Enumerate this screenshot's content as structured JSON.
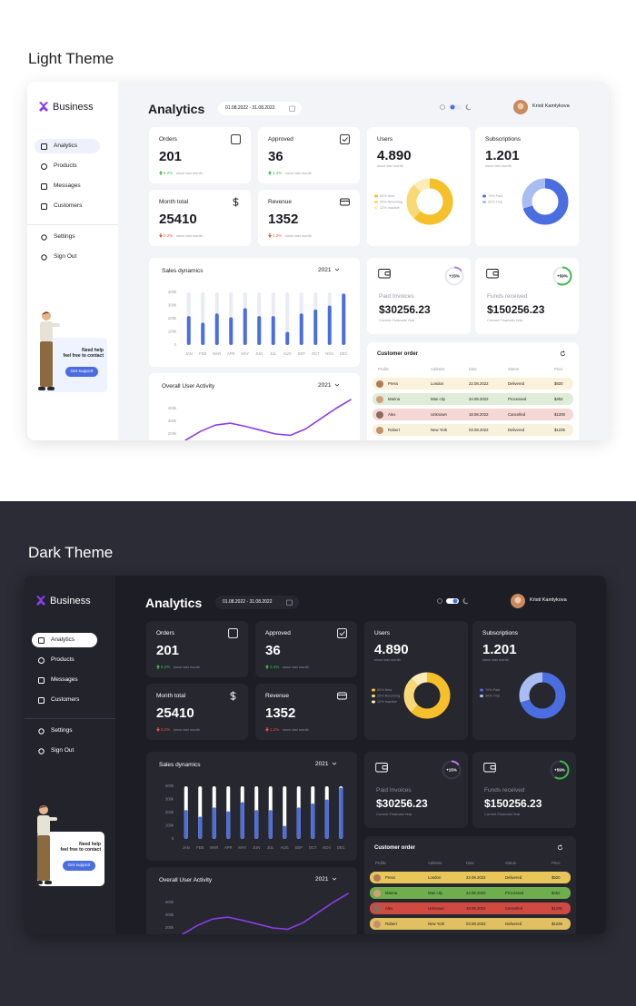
{
  "sections": [
    {
      "title": "Light Theme",
      "theme": "light"
    },
    {
      "title": "Dark Theme",
      "theme": "dark"
    }
  ],
  "sidebar": {
    "brand": "Business",
    "nav": [
      "Analytics",
      "Products",
      "Messages",
      "Customers"
    ],
    "footer_nav": [
      "Settings",
      "Sign Out"
    ],
    "help": [
      "Need help",
      "feel free to contact"
    ],
    "help_button": "Get support"
  },
  "header": {
    "title": "Analytics",
    "date_range": "01.08.2022 - 31.08.2022",
    "user": "Kristi Kamlykova"
  },
  "stats": [
    {
      "label": "Orders",
      "value": "201",
      "change": "8.2%",
      "trend": "up",
      "note": "since last month"
    },
    {
      "label": "Approved",
      "value": "36",
      "change": "3.4%",
      "trend": "up",
      "note": "since last month"
    },
    {
      "label": "Month total",
      "value": "25410",
      "change": "0.2%",
      "trend": "down",
      "note": "since last month"
    },
    {
      "label": "Revenue",
      "value": "1352",
      "change": "1.2%",
      "trend": "down",
      "note": "since last month"
    }
  ],
  "finance": [
    {
      "label": "Paid Invoices",
      "amount": "$30256.23",
      "note": "Current Financial Year",
      "badge": {
        "value": 15,
        "label": "+15%"
      },
      "color": "#b57cf0"
    },
    {
      "label": "Funds received",
      "amount": "$150256.23",
      "note": "Current Financial Year",
      "badge": {
        "value": 59,
        "label": "+59%"
      },
      "color": "#3fb950"
    }
  ],
  "orders": {
    "title": "Customer order",
    "columns": [
      "Profile",
      "Address",
      "Date",
      "Status",
      "Price"
    ],
    "rows": [
      {
        "cells": [
          "Press",
          "London",
          "22.08.2022",
          "Delivered",
          "$920"
        ],
        "color": "#e8c65a"
      },
      {
        "cells": [
          "Marina",
          "Man city",
          "24.08.2022",
          "Processed",
          "$452"
        ],
        "color": "#6fae4c"
      },
      {
        "cells": [
          "Alex",
          "Unknown",
          "18.08.2022",
          "Cancelled",
          "$1200"
        ],
        "color": "#d04a42"
      },
      {
        "cells": [
          "Robert",
          "New York",
          "03.08.2022",
          "Delivered",
          "$1235"
        ],
        "color": "#e0c060"
      }
    ]
  },
  "chart_data": [
    {
      "type": "bar",
      "title": "Sales dynamics",
      "period": "2021",
      "categories": [
        "JAN",
        "FEB",
        "MAR",
        "APR",
        "MAY",
        "JUN",
        "JUL",
        "AUG",
        "SEP",
        "OCT",
        "NOV",
        "DEC"
      ],
      "values": [
        220000,
        170000,
        240000,
        210000,
        280000,
        220000,
        220000,
        100000,
        240000,
        270000,
        300000,
        390000
      ],
      "color": "#4a6ee0",
      "ylim": [
        0,
        400000
      ],
      "yticks": [
        0,
        {
          "value": 100000,
          "label": "100k"
        },
        {
          "value": 200000,
          "label": "200k"
        },
        {
          "value": 300000,
          "label": "300k"
        },
        {
          "value": 400000,
          "label": "400k"
        }
      ]
    },
    {
      "type": "line",
      "title": "Overall User Activity",
      "period": "2021",
      "values": [
        150000,
        220000,
        270000,
        285000,
        260000,
        230000,
        200000,
        190000,
        240000,
        320000,
        400000,
        470000
      ],
      "color": "#8a3ee8",
      "ylim": [
        0,
        480000
      ],
      "yticks": [
        {
          "value": 200000,
          "label": "200k"
        },
        {
          "value": 300000,
          "label": "300k"
        },
        {
          "value": 400000,
          "label": "400k"
        }
      ]
    },
    {
      "type": "pie",
      "title": "Users",
      "total": "4.890",
      "note": "since last month",
      "values": [
        62,
        26,
        12
      ],
      "value_labels": [
        "62% New",
        "26% Returning",
        "12% Inactive"
      ],
      "colors": [
        "#f5c02a",
        "#f9d976",
        "#fcecb8"
      ]
    },
    {
      "type": "pie",
      "title": "Subscriptions",
      "total": "1.201",
      "note": "since last month",
      "values": [
        70,
        30
      ],
      "value_labels": [
        "70% Paid",
        "30% Trial"
      ],
      "colors": [
        "#4a6ee0",
        "#a9bdf3"
      ]
    }
  ]
}
